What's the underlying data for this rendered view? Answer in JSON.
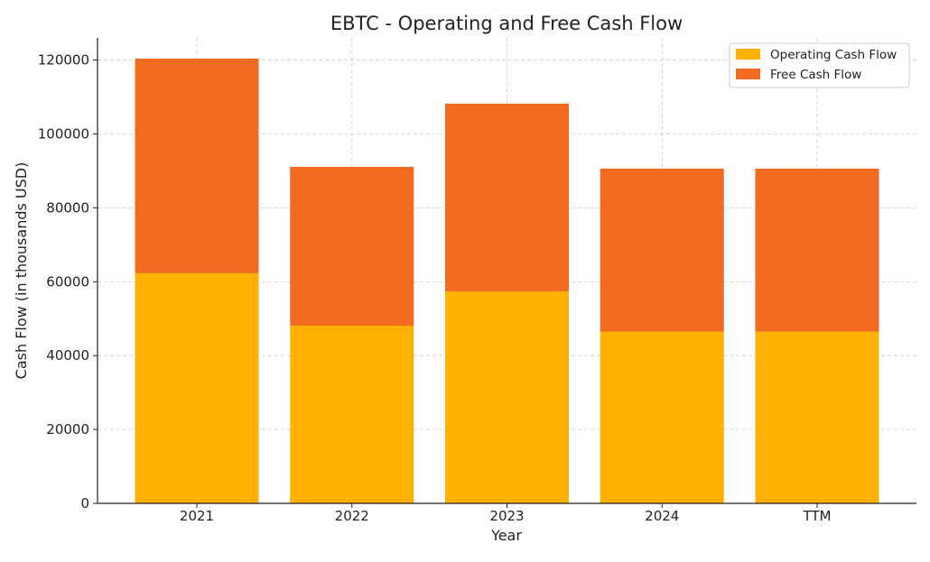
{
  "chart_data": {
    "type": "bar",
    "stacked": true,
    "title": "EBTC - Operating and Free Cash Flow",
    "xlabel": "Year",
    "ylabel": "Cash Flow (in thousands USD)",
    "categories": [
      "2021",
      "2022",
      "2023",
      "2024",
      "TTM"
    ],
    "series": [
      {
        "name": "Operating Cash Flow",
        "color": "#FFB000",
        "values": [
          62300,
          48100,
          57400,
          46500,
          46500
        ]
      },
      {
        "name": "Free Cash Flow",
        "color": "#F26B21",
        "values": [
          58100,
          43000,
          50800,
          44100,
          44100
        ]
      }
    ],
    "ylim": [
      0,
      126000
    ],
    "yticks": [
      0,
      20000,
      40000,
      60000,
      80000,
      100000,
      120000
    ],
    "grid": true,
    "legend_position": "top-right"
  }
}
